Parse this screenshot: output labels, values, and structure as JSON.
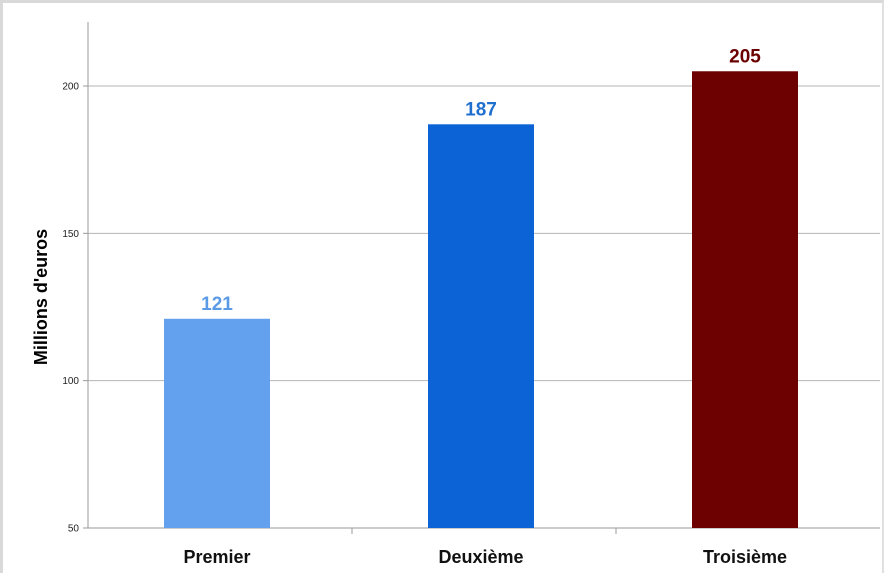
{
  "chart_data": {
    "type": "bar",
    "categories": [
      "Premier",
      "Deuxième",
      "Troisième"
    ],
    "values": [
      121,
      187,
      205
    ],
    "value_labels": [
      "121",
      "187",
      "205"
    ],
    "ylabel": "Millions d'euros",
    "xlabel": "",
    "ylim": [
      50,
      220
    ],
    "yticks": [
      50,
      100,
      150,
      200
    ],
    "ytick_labels": [
      "50",
      "100",
      "150",
      "200"
    ],
    "grid": true,
    "legend": "none",
    "colors": [
      "#63a0ed",
      "#0b63d6",
      "#6d0000"
    ],
    "label_colors": [
      "#5b9be6",
      "#1f6fcf",
      "#6b0000"
    ]
  }
}
